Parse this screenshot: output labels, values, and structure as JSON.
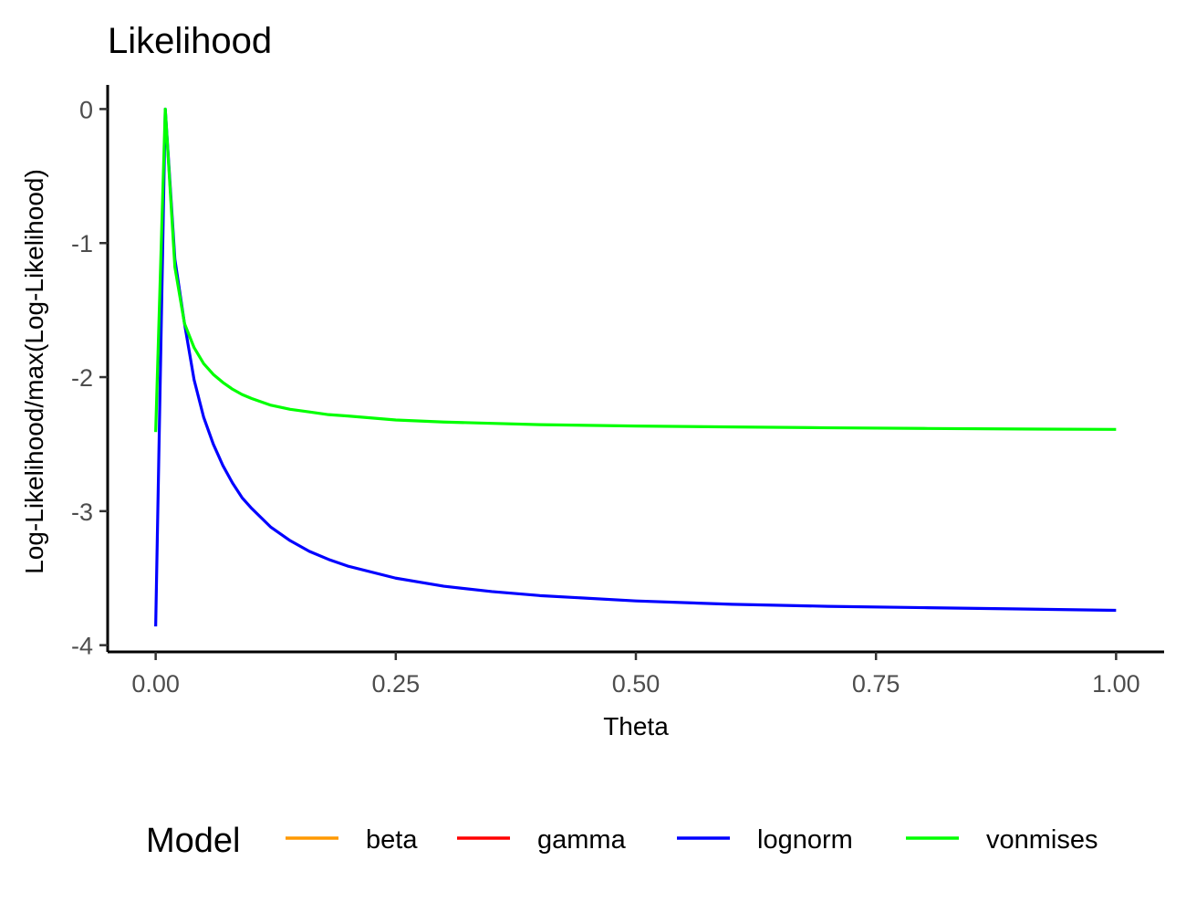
{
  "chart_data": {
    "type": "line",
    "title": "Likelihood",
    "xlabel": "Theta",
    "ylabel": "Log-Likelihood/max(Log-Likelihood)",
    "xlim": [
      -0.05,
      1.05
    ],
    "ylim": [
      -4.05,
      0.18
    ],
    "xticks": [
      "0.00",
      "0.25",
      "0.50",
      "0.75",
      "1.00"
    ],
    "xtick_values": [
      0,
      0.25,
      0.5,
      0.75,
      1.0
    ],
    "yticks": [
      "0",
      "-1",
      "-2",
      "-3",
      "-4"
    ],
    "ytick_values": [
      0,
      -1,
      -2,
      -3,
      -4
    ],
    "grid": false,
    "legend": {
      "title": "Model",
      "position": "bottom",
      "entries": [
        {
          "label": "beta",
          "color": "#FF9900"
        },
        {
          "label": "gamma",
          "color": "#FF0000"
        },
        {
          "label": "lognorm",
          "color": "#0000FF"
        },
        {
          "label": "vonmises",
          "color": "#00FF00"
        }
      ]
    },
    "series": [
      {
        "name": "lognorm",
        "color": "#0000FF",
        "x": [
          0.0,
          0.01,
          0.02,
          0.03,
          0.04,
          0.05,
          0.06,
          0.07,
          0.08,
          0.09,
          0.1,
          0.12,
          0.14,
          0.16,
          0.18,
          0.2,
          0.25,
          0.3,
          0.35,
          0.4,
          0.5,
          0.6,
          0.7,
          0.8,
          0.9,
          1.0
        ],
        "y": [
          -3.86,
          0.0,
          -1.12,
          -1.6,
          -2.02,
          -2.3,
          -2.5,
          -2.66,
          -2.79,
          -2.9,
          -2.98,
          -3.12,
          -3.22,
          -3.3,
          -3.36,
          -3.41,
          -3.5,
          -3.56,
          -3.6,
          -3.63,
          -3.67,
          -3.695,
          -3.71,
          -3.72,
          -3.73,
          -3.74
        ]
      },
      {
        "name": "vonmises",
        "color": "#00FF00",
        "x": [
          0.0,
          0.01,
          0.02,
          0.03,
          0.04,
          0.05,
          0.06,
          0.07,
          0.08,
          0.09,
          0.1,
          0.12,
          0.14,
          0.16,
          0.18,
          0.2,
          0.25,
          0.3,
          0.35,
          0.4,
          0.5,
          0.6,
          0.7,
          0.8,
          0.9,
          1.0
        ],
        "y": [
          -2.41,
          0.0,
          -1.18,
          -1.6,
          -1.78,
          -1.9,
          -1.98,
          -2.04,
          -2.09,
          -2.13,
          -2.16,
          -2.21,
          -2.24,
          -2.26,
          -2.28,
          -2.29,
          -2.32,
          -2.335,
          -2.345,
          -2.355,
          -2.365,
          -2.372,
          -2.378,
          -2.383,
          -2.387,
          -2.39
        ]
      }
    ]
  }
}
